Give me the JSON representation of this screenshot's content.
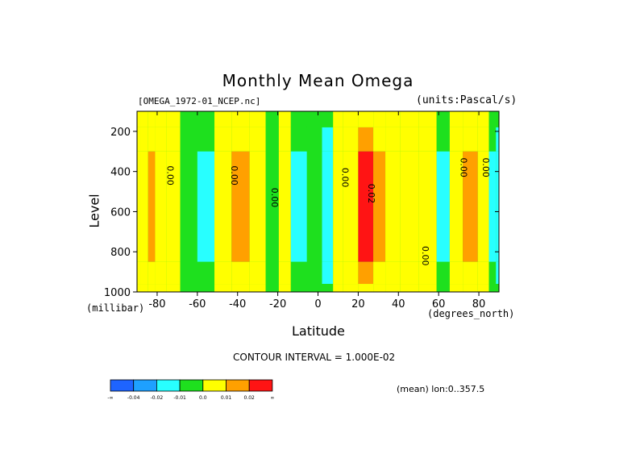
{
  "chart_data": {
    "type": "heatmap",
    "title": "Monthly Mean Omega",
    "file_label": "[OMEGA_1972-01_NCEP.nc]",
    "units_label": "(units:Pascal/s)",
    "xlabel": "Latitude",
    "xunits": "(degrees_north)",
    "ylabel": "Level",
    "yunits": "(millibar)",
    "xlim": [
      -90,
      90
    ],
    "ylim": [
      1000,
      100
    ],
    "x_ticks": [
      -80,
      -60,
      -40,
      -20,
      0,
      20,
      40,
      60,
      80
    ],
    "y_ticks": [
      200,
      400,
      600,
      800,
      1000
    ],
    "contour_interval_text": "CONTOUR INTERVAL = 1.000E-02",
    "mean_text": "(mean) lon:0..357.5",
    "contour_labels": [
      {
        "text": "0.00",
        "lon": -75,
        "lev": 420
      },
      {
        "text": "0.00",
        "lon": -43,
        "lev": 420
      },
      {
        "text": "0.00",
        "lon": -23,
        "lev": 530
      },
      {
        "text": "0.00",
        "lon": 12,
        "lev": 430
      },
      {
        "text": "0.02",
        "lon": 25,
        "lev": 510
      },
      {
        "text": "0.00",
        "lon": 52,
        "lev": 820
      },
      {
        "text": "0.00",
        "lon": 71,
        "lev": 380
      },
      {
        "text": "0.00",
        "lon": 82,
        "lev": 380
      }
    ],
    "bands": [
      {
        "lon": -90,
        "value": 0.002
      },
      {
        "lon": -86,
        "value": 0.0
      },
      {
        "lon": -83,
        "value": 0.012
      },
      {
        "lon": -79,
        "value": 0.004
      },
      {
        "lon": -72,
        "value": 0.003
      },
      {
        "lon": -65,
        "value": -0.005
      },
      {
        "lon": -55,
        "value": -0.012
      },
      {
        "lon": -48,
        "value": 0.003
      },
      {
        "lon": -38,
        "value": 0.014
      },
      {
        "lon": -30,
        "value": 0.004
      },
      {
        "lon": -22,
        "value": -0.002
      },
      {
        "lon": -17,
        "value": 0.001
      },
      {
        "lon": -10,
        "value": -0.013
      },
      {
        "lon": -1,
        "value": -0.006
      },
      {
        "lon": 5,
        "value": -0.018
      },
      {
        "lon": 10,
        "value": 0.001
      },
      {
        "lon": 15,
        "value": 0.006
      },
      {
        "lon": 25,
        "value": 0.021
      },
      {
        "lon": 30,
        "value": 0.014
      },
      {
        "lon": 37,
        "value": 0.004
      },
      {
        "lon": 45,
        "value": 0.0
      },
      {
        "lon": 55,
        "value": 0.004
      },
      {
        "lon": 63,
        "value": -0.012
      },
      {
        "lon": 68,
        "value": 0.001
      },
      {
        "lon": 76,
        "value": 0.013
      },
      {
        "lon": 83,
        "value": 0.003
      },
      {
        "lon": 87,
        "value": -0.012
      },
      {
        "lon": 90,
        "value": -0.015
      }
    ],
    "colorbar": {
      "colors": [
        "#1e64ff",
        "#1ea0ff",
        "#28ffff",
        "#1ee01e",
        "#ffff00",
        "#ffa000",
        "#ff1414"
      ],
      "labels": [
        "-∞",
        "-0.04",
        "-0.02",
        "-0.01",
        "0.0",
        "0.01",
        "0.02",
        "∞"
      ]
    }
  }
}
